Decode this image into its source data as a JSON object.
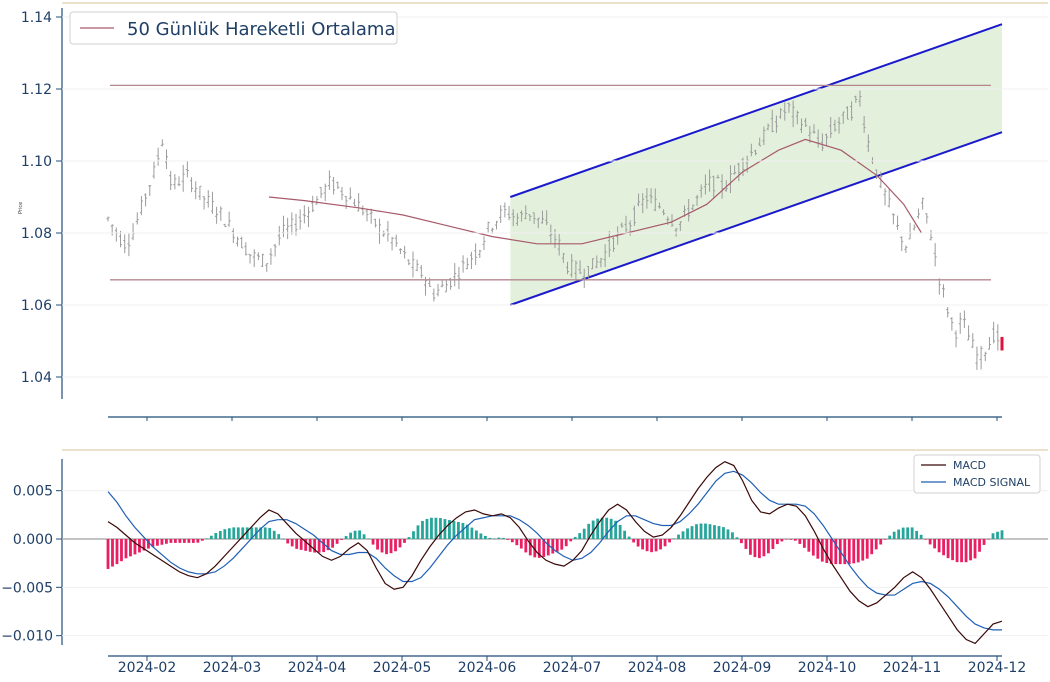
{
  "chart_data": [
    {
      "type": "ohlc",
      "ylabel": "Price",
      "ylim": [
        1.034,
        1.14
      ],
      "yticks": [
        1.04,
        1.06,
        1.08,
        1.1,
        1.12,
        1.14
      ],
      "ytick_labels": [
        "1.04",
        "1.06",
        "1.08",
        "1.10",
        "1.12",
        "1.14"
      ],
      "legend": {
        "position": "top-left",
        "label": "50 Günlük Hareketli Ortalama"
      },
      "horizontal_levels": [
        1.121,
        1.067
      ],
      "channel": {
        "upper": [
          [
            0.45,
            1.09
          ],
          [
            1.0,
            1.138
          ]
        ],
        "lower": [
          [
            0.45,
            1.06
          ],
          [
            1.0,
            1.108
          ]
        ],
        "fill_color": "#d9ecd0",
        "line_color": "#1a1acc"
      },
      "moving_average_50": [
        [
          0.18,
          1.09
        ],
        [
          0.22,
          1.089
        ],
        [
          0.28,
          1.087
        ],
        [
          0.33,
          1.085
        ],
        [
          0.38,
          1.082
        ],
        [
          0.43,
          1.079
        ],
        [
          0.48,
          1.077
        ],
        [
          0.53,
          1.077
        ],
        [
          0.58,
          1.08
        ],
        [
          0.63,
          1.083
        ],
        [
          0.67,
          1.088
        ],
        [
          0.71,
          1.097
        ],
        [
          0.75,
          1.103
        ],
        [
          0.78,
          1.106
        ],
        [
          0.82,
          1.103
        ],
        [
          0.86,
          1.096
        ],
        [
          0.89,
          1.088
        ],
        [
          0.91,
          1.08
        ]
      ],
      "ohlc_price_path": [
        [
          0.0,
          1.084
        ],
        [
          0.02,
          1.077
        ],
        [
          0.03,
          1.079
        ],
        [
          0.05,
          1.092
        ],
        [
          0.06,
          1.098
        ],
        [
          0.07,
          1.107
        ],
        [
          0.08,
          1.093
        ],
        [
          0.1,
          1.096
        ],
        [
          0.12,
          1.09
        ],
        [
          0.14,
          1.086
        ],
        [
          0.16,
          1.08
        ],
        [
          0.18,
          1.074
        ],
        [
          0.2,
          1.072
        ],
        [
          0.22,
          1.08
        ],
        [
          0.24,
          1.083
        ],
        [
          0.26,
          1.088
        ],
        [
          0.28,
          1.094
        ],
        [
          0.3,
          1.091
        ],
        [
          0.32,
          1.087
        ],
        [
          0.34,
          1.082
        ],
        [
          0.36,
          1.078
        ],
        [
          0.38,
          1.072
        ],
        [
          0.4,
          1.068
        ],
        [
          0.41,
          1.063
        ],
        [
          0.43,
          1.066
        ],
        [
          0.45,
          1.071
        ],
        [
          0.47,
          1.076
        ],
        [
          0.48,
          1.081
        ],
        [
          0.5,
          1.086
        ],
        [
          0.52,
          1.084
        ],
        [
          0.53,
          1.086
        ],
        [
          0.55,
          1.083
        ],
        [
          0.57,
          1.077
        ],
        [
          0.58,
          1.071
        ],
        [
          0.6,
          1.069
        ],
        [
          0.62,
          1.072
        ],
        [
          0.64,
          1.078
        ],
        [
          0.66,
          1.083
        ],
        [
          0.68,
          1.09
        ],
        [
          0.7,
          1.087
        ],
        [
          0.72,
          1.082
        ],
        [
          0.74,
          1.088
        ],
        [
          0.76,
          1.094
        ],
        [
          0.78,
          1.093
        ],
        [
          0.8,
          1.099
        ],
        [
          0.82,
          1.104
        ],
        [
          0.84,
          1.11
        ],
        [
          0.86,
          1.115
        ],
        [
          0.87,
          1.112
        ],
        [
          0.89,
          1.108
        ],
        [
          0.9,
          1.104
        ],
        [
          0.92,
          1.11
        ],
        [
          0.94,
          1.114
        ],
        [
          0.95,
          1.118
        ],
        [
          0.96,
          1.106
        ],
        [
          0.97,
          1.098
        ],
        [
          0.98,
          1.092
        ],
        [
          0.99,
          1.086
        ],
        [
          1.0,
          1.08
        ],
        [
          1.01,
          1.076
        ],
        [
          1.02,
          1.082
        ],
        [
          1.03,
          1.088
        ],
        [
          1.04,
          1.08
        ],
        [
          1.05,
          1.068
        ],
        [
          1.06,
          1.06
        ],
        [
          1.07,
          1.052
        ],
        [
          1.08,
          1.056
        ],
        [
          1.09,
          1.05
        ],
        [
          1.1,
          1.045
        ],
        [
          1.11,
          1.048
        ],
        [
          1.12,
          1.052
        ],
        [
          1.13,
          1.049
        ]
      ],
      "last_bar_color": "#e0113d"
    },
    {
      "type": "macd",
      "ylim": [
        -0.0112,
        0.0085
      ],
      "yticks": [
        -0.01,
        -0.005,
        0.0,
        0.005
      ],
      "ytick_labels": [
        "−0.010",
        "−0.005",
        "0.000",
        "0.005"
      ],
      "legend": {
        "position": "top-right"
      },
      "series": [
        {
          "name": "MACD",
          "color": "#3a0808",
          "values": [
            0.0018,
            0.0012,
            0.0004,
            -0.0004,
            -0.001,
            -0.0016,
            -0.0022,
            -0.0028,
            -0.0034,
            -0.0038,
            -0.004,
            -0.0036,
            -0.0028,
            -0.0018,
            -0.0008,
            0.0002,
            0.0012,
            0.0022,
            0.003,
            0.0026,
            0.0016,
            0.0006,
            -0.0002,
            -0.001,
            -0.0018,
            -0.0022,
            -0.0018,
            -0.001,
            -0.0004,
            -0.0012,
            -0.003,
            -0.0046,
            -0.0052,
            -0.005,
            -0.0038,
            -0.0022,
            -0.0008,
            0.0004,
            0.0014,
            0.0022,
            0.0028,
            0.003,
            0.0026,
            0.0024,
            0.0026,
            0.0022,
            0.0012,
            -0.0002,
            -0.0014,
            -0.0022,
            -0.0026,
            -0.0028,
            -0.0022,
            -0.0012,
            0.0004,
            0.0018,
            0.003,
            0.0036,
            0.003,
            0.0018,
            0.0008,
            0.0002,
            0.0004,
            0.0012,
            0.0024,
            0.0038,
            0.0052,
            0.0064,
            0.0074,
            0.008,
            0.0076,
            0.006,
            0.004,
            0.0028,
            0.0026,
            0.0032,
            0.0036,
            0.0034,
            0.0024,
            0.0008,
            -0.001,
            -0.0026,
            -0.004,
            -0.0054,
            -0.0064,
            -0.007,
            -0.0066,
            -0.0058,
            -0.005,
            -0.004,
            -0.0034,
            -0.004,
            -0.0052,
            -0.0066,
            -0.008,
            -0.0094,
            -0.0104,
            -0.0108,
            -0.0098,
            -0.0088,
            -0.0085
          ]
        },
        {
          "name": "MACD SIGNAL",
          "color": "#1f5fb5",
          "values": [
            0.0049,
            0.0038,
            0.0024,
            0.0012,
            0.0002,
            -0.0008,
            -0.0016,
            -0.0024,
            -0.003,
            -0.0034,
            -0.0036,
            -0.0036,
            -0.0034,
            -0.0028,
            -0.002,
            -0.001,
            0.0,
            0.001,
            0.0018,
            0.002,
            0.002,
            0.0016,
            0.001,
            0.0004,
            -0.0004,
            -0.0012,
            -0.0016,
            -0.0016,
            -0.0014,
            -0.0014,
            -0.002,
            -0.003,
            -0.0038,
            -0.0044,
            -0.0044,
            -0.004,
            -0.003,
            -0.0018,
            -0.0006,
            0.0004,
            0.0012,
            0.002,
            0.0022,
            0.0024,
            0.0024,
            0.0024,
            0.002,
            0.0014,
            0.0006,
            -0.0004,
            -0.0012,
            -0.0018,
            -0.0022,
            -0.002,
            -0.0014,
            -0.0004,
            0.0008,
            0.0018,
            0.0024,
            0.0024,
            0.002,
            0.0016,
            0.0014,
            0.0014,
            0.0018,
            0.0026,
            0.0036,
            0.0048,
            0.006,
            0.0068,
            0.007,
            0.0066,
            0.0058,
            0.0048,
            0.004,
            0.0036,
            0.0036,
            0.0036,
            0.0034,
            0.0026,
            0.0014,
            0.0,
            -0.0014,
            -0.0028,
            -0.004,
            -0.005,
            -0.0056,
            -0.0058,
            -0.0058,
            -0.0052,
            -0.0046,
            -0.0044,
            -0.0046,
            -0.0052,
            -0.006,
            -0.007,
            -0.008,
            -0.0088,
            -0.0092,
            -0.0094,
            -0.0094
          ]
        }
      ],
      "histogram_colors": {
        "positive": "#26a69a",
        "negative": "#e91e63"
      },
      "zero_line_color": "#b0b0b0"
    }
  ],
  "xaxis": {
    "ticks": [
      "2024-02",
      "2024-03",
      "2024-04",
      "2024-05",
      "2024-06",
      "2024-07",
      "2024-08",
      "2024-09",
      "2024-10",
      "2024-11",
      "2024-12"
    ]
  },
  "colors": {
    "axis": "#1f4e79",
    "hline": "#b4878f",
    "ma": "#a85a6a",
    "separator": "#d8c49a",
    "grid": "#f0f0f0",
    "ohlc": "#9b9b9b"
  }
}
